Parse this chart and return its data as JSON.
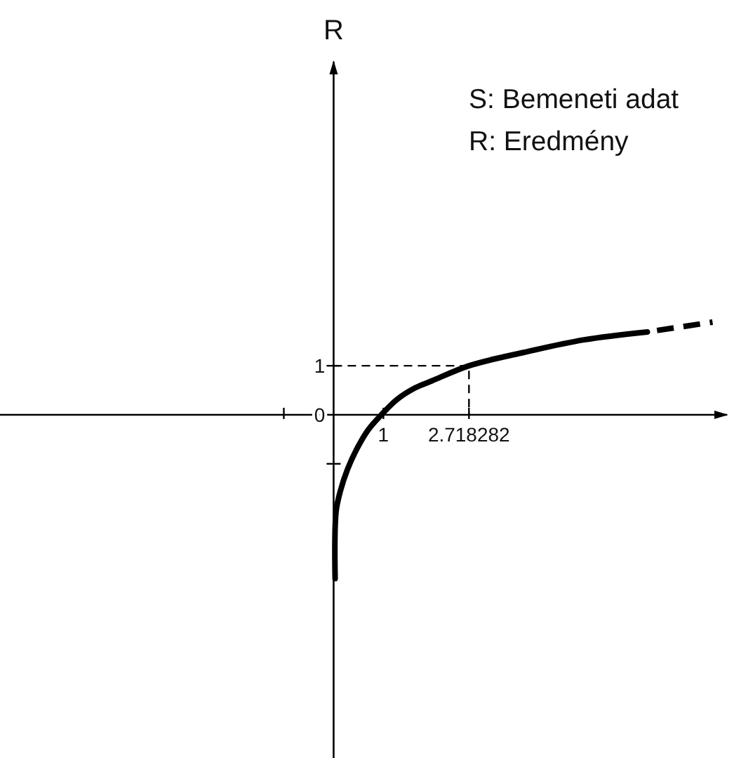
{
  "chart_data": {
    "type": "line",
    "ylabel": "R",
    "annotations": [
      "S: Bemeneti adat",
      "R: Eredmény"
    ],
    "xlim": [
      -6.7,
      7.9
    ],
    "ylim": [
      -7,
      7.2
    ],
    "xticks": [
      {
        "value": -1,
        "label": null
      },
      1,
      2.718282
    ],
    "yticks": [
      {
        "value": -1,
        "label": null
      },
      0,
      1
    ],
    "series": [
      {
        "color": "#000000",
        "line_style": "solid",
        "x": [
          0.03,
          0.05,
          0.14,
          0.28,
          0.47,
          0.7,
          0.94,
          1.27,
          1.64,
          1.97,
          2.72,
          3.81,
          5.03,
          6.3
        ],
        "values": [
          -3.34,
          -1.97,
          -1.54,
          -1.11,
          -0.69,
          -0.3,
          -0.02,
          0.31,
          0.55,
          0.69,
          1.0,
          1.27,
          1.53,
          1.69
        ]
      },
      {
        "color": "#000000",
        "line_style": "dashed",
        "x": [
          6.3,
          7.61
        ],
        "values": [
          1.69,
          1.89
        ]
      },
      {
        "color": "#000000",
        "line_style": "dashed",
        "x": [
          0,
          2.718282,
          2.718282
        ],
        "values": [
          1,
          1,
          0
        ]
      }
    ]
  }
}
